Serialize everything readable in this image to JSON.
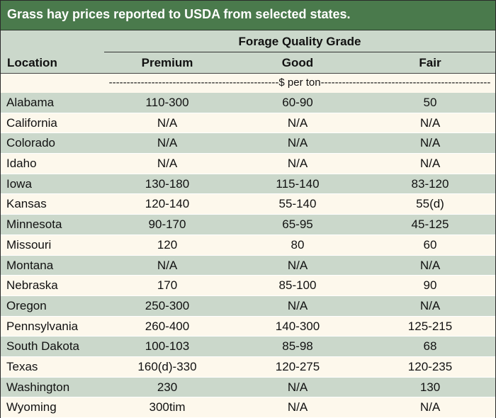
{
  "title": "Grass hay prices reported to USDA from selected states.",
  "header": {
    "group_label": "Forage Quality Grade",
    "columns": {
      "location": "Location",
      "premium": "Premium",
      "good": "Good",
      "fair": "Fair"
    }
  },
  "unit_label": "------------------------------------------------$ per ton------------------------------------------------",
  "rows": [
    {
      "location": "Alabama",
      "premium": "110-300",
      "good": "60-90",
      "fair": "50"
    },
    {
      "location": "California",
      "premium": "N/A",
      "good": "N/A",
      "fair": "N/A"
    },
    {
      "location": "Colorado",
      "premium": "N/A",
      "good": "N/A",
      "fair": "N/A"
    },
    {
      "location": "Idaho",
      "premium": "N/A",
      "good": "N/A",
      "fair": "N/A"
    },
    {
      "location": "Iowa",
      "premium": "130-180",
      "good": "115-140",
      "fair": "83-120"
    },
    {
      "location": "Kansas",
      "premium": "120-140",
      "good": "55-140",
      "fair": "55(d)"
    },
    {
      "location": "Minnesota",
      "premium": "90-170",
      "good": "65-95",
      "fair": "45-125"
    },
    {
      "location": "Missouri",
      "premium": "120",
      "good": "80",
      "fair": "60"
    },
    {
      "location": "Montana",
      "premium": "N/A",
      "good": "N/A",
      "fair": "N/A"
    },
    {
      "location": "Nebraska",
      "premium": "170",
      "good": "85-100",
      "fair": "90"
    },
    {
      "location": "Oregon",
      "premium": "250-300",
      "good": "N/A",
      "fair": "N/A"
    },
    {
      "location": "Pennsylvania",
      "premium": "260-400",
      "good": "140-300",
      "fair": "125-215"
    },
    {
      "location": "South Dakota",
      "premium": "100-103",
      "good": "85-98",
      "fair": "68"
    },
    {
      "location": "Texas",
      "premium": "160(d)-330",
      "good": "120-275",
      "fair": "120-235"
    },
    {
      "location": "Washington",
      "premium": "230",
      "good": "N/A",
      "fair": "130"
    },
    {
      "location": "Wyoming",
      "premium": "300tim",
      "good": "N/A",
      "fair": "N/A"
    }
  ],
  "colors": {
    "title_bg": "#4a7a4c",
    "shade_row": "#cbd8cb",
    "plain_row": "#fdf8ec"
  }
}
